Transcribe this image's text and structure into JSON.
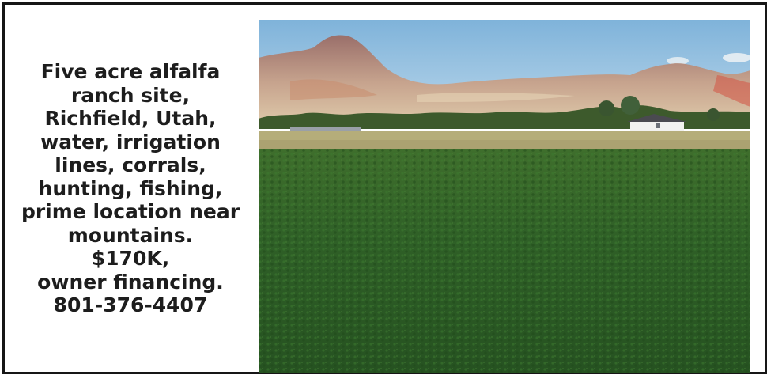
{
  "listing": {
    "lines": [
      "Five acre alfalfa",
      "ranch site,",
      "Richfield, Utah,",
      "water, irrigation",
      "lines, corrals,",
      "hunting, fishing,",
      "prime location near",
      "mountains.",
      "$170K,",
      "owner financing.",
      "801-376-4407"
    ]
  },
  "colors": {
    "border": "#161616",
    "text": "#1d1d1d",
    "sky": "#8fbcdc",
    "mountain": "#b0867a",
    "field": "#2c5c24"
  },
  "photo": {
    "subject": "alfalfa-field-with-mountains-photo"
  }
}
